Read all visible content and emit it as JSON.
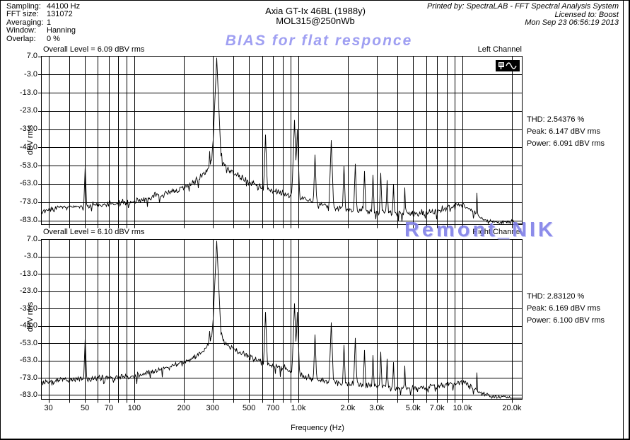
{
  "header": {
    "info": [
      {
        "label": "Sampling:",
        "value": "44100 Hz"
      },
      {
        "label": "FFT size:",
        "value": "131072"
      },
      {
        "label": "Averaging:",
        "value": "1"
      },
      {
        "label": "Window:",
        "value": "Hanning"
      },
      {
        "label": "Overlap:",
        "value": "0 %"
      }
    ],
    "title_line1": "Axia GT-Ix 46BL (1988y)",
    "title_line2": "MOL315@250nWb",
    "printed_by": "Printed by: SpectraLAB - FFT Spectral Analysis System",
    "licensed_to": "Licensed to: Boost",
    "timestamp": "Mon Sep 23 06:56:19 2013",
    "bias_note": "BIAS for flat responce"
  },
  "watermark": "Remont_NIK",
  "colors": {
    "note_blue": "#9f9ff2",
    "watermark_blue": "#7d7de8",
    "trace": "#000000",
    "grid": "#000000",
    "background": "#ffffff"
  },
  "axis": {
    "x_label": "Frequency (Hz)",
    "x_tick_labels": [
      "30",
      "50",
      "70",
      "100",
      "200",
      "300",
      "500",
      "700",
      "1.0k",
      "2.0k",
      "3.0k",
      "5.0k",
      "7.0k",
      "10.0k",
      "20.0k"
    ],
    "y_tick_labels": [
      "7.0",
      "-3.0",
      "-13.0",
      "-23.0",
      "-33.0",
      "-43.0",
      "-53.0",
      "-63.0",
      "-73.0",
      "-83.0"
    ]
  },
  "charts": [
    {
      "overall_level": "Overall Level = 6.09 dBV rms",
      "channel": "Left Channel",
      "ylabel": "dBV rms",
      "stats": [
        "THD: 2.54376 %",
        "Peak: 6.147 dBV rms",
        "Power: 6.091 dBV rms"
      ]
    },
    {
      "overall_level": "Overall Level = 6.10 dBV rms",
      "channel": "Right Channel",
      "ylabel": "dBV rms",
      "stats": [
        "THD: 2.83120 %",
        "Peak: 6.169 dBV rms",
        "Power: 6.100 dBV rms"
      ]
    }
  ],
  "chart_data": [
    {
      "type": "line",
      "channel": "Left Channel",
      "title": "Overall Level = 6.09 dBV rms",
      "xlabel": "Frequency (Hz)",
      "ylabel": "dBV rms",
      "xscale": "log",
      "xlim": [
        27,
        23000
      ],
      "ylim": [
        -86,
        7
      ],
      "grid": true,
      "x_ticks": [
        30,
        50,
        70,
        100,
        200,
        300,
        500,
        700,
        1000,
        2000,
        3000,
        5000,
        7000,
        10000,
        20000
      ],
      "y_ticks": [
        7,
        -3,
        -13,
        -23,
        -33,
        -43,
        -53,
        -63,
        -73,
        -83
      ],
      "stats": {
        "overall_level_dbv_rms": 6.09,
        "thd_percent": 2.54376,
        "peak_dbv_rms": 6.147,
        "power_dbv_rms": 6.091
      },
      "fundamental_hz": 315,
      "noise_floor_db": [
        [
          27,
          -78
        ],
        [
          35,
          -76
        ],
        [
          50,
          -75
        ],
        [
          70,
          -74
        ],
        [
          100,
          -73
        ],
        [
          130,
          -70
        ],
        [
          160,
          -68
        ],
        [
          200,
          -65
        ],
        [
          240,
          -61
        ],
        [
          270,
          -57
        ],
        [
          290,
          -52
        ],
        [
          305,
          -46
        ],
        [
          315,
          -41
        ],
        [
          328,
          -47
        ],
        [
          345,
          -52
        ],
        [
          380,
          -56
        ],
        [
          430,
          -59
        ],
        [
          500,
          -62
        ],
        [
          600,
          -65
        ],
        [
          700,
          -67
        ],
        [
          850,
          -69
        ],
        [
          1000,
          -71
        ],
        [
          1300,
          -74
        ],
        [
          1700,
          -76
        ],
        [
          2200,
          -77
        ],
        [
          3000,
          -78
        ],
        [
          4000,
          -79
        ],
        [
          5500,
          -79
        ],
        [
          7000,
          -78
        ],
        [
          8500,
          -75
        ],
        [
          10000,
          -74
        ],
        [
          11500,
          -78
        ],
        [
          13000,
          -82
        ],
        [
          15000,
          -84
        ],
        [
          18000,
          -84
        ],
        [
          20000,
          -84
        ],
        [
          23000,
          -86
        ]
      ],
      "peaks_db": [
        [
          50,
          -53
        ],
        [
          285,
          -45
        ],
        [
          297,
          -43
        ],
        [
          315,
          6.15
        ],
        [
          340,
          -46
        ],
        [
          630,
          -36
        ],
        [
          945,
          -28
        ],
        [
          985,
          -33
        ],
        [
          1260,
          -47
        ],
        [
          1575,
          -39
        ],
        [
          1890,
          -53
        ],
        [
          2205,
          -52
        ],
        [
          2520,
          -56
        ],
        [
          2835,
          -58
        ],
        [
          3150,
          -57
        ],
        [
          3465,
          -61
        ],
        [
          3780,
          -63
        ],
        [
          4410,
          -65
        ],
        [
          12200,
          -68
        ]
      ]
    },
    {
      "type": "line",
      "channel": "Right Channel",
      "title": "Overall Level = 6.10 dBV rms",
      "xlabel": "Frequency (Hz)",
      "ylabel": "dBV rms",
      "xscale": "log",
      "xlim": [
        27,
        23000
      ],
      "ylim": [
        -86,
        7
      ],
      "grid": true,
      "x_ticks": [
        30,
        50,
        70,
        100,
        200,
        300,
        500,
        700,
        1000,
        2000,
        3000,
        5000,
        7000,
        10000,
        20000
      ],
      "y_ticks": [
        7,
        -3,
        -13,
        -23,
        -33,
        -43,
        -53,
        -63,
        -73,
        -83
      ],
      "stats": {
        "overall_level_dbv_rms": 6.1,
        "thd_percent": 2.8312,
        "peak_dbv_rms": 6.169,
        "power_dbv_rms": 6.1
      },
      "fundamental_hz": 315,
      "noise_floor_db": [
        [
          27,
          -76
        ],
        [
          35,
          -74
        ],
        [
          50,
          -74
        ],
        [
          70,
          -73
        ],
        [
          100,
          -72
        ],
        [
          130,
          -69
        ],
        [
          160,
          -67
        ],
        [
          200,
          -64
        ],
        [
          240,
          -60
        ],
        [
          270,
          -56
        ],
        [
          290,
          -51
        ],
        [
          305,
          -45
        ],
        [
          315,
          -40
        ],
        [
          328,
          -46
        ],
        [
          345,
          -51
        ],
        [
          380,
          -55
        ],
        [
          430,
          -58
        ],
        [
          500,
          -61
        ],
        [
          600,
          -64
        ],
        [
          700,
          -66
        ],
        [
          850,
          -68
        ],
        [
          1000,
          -71
        ],
        [
          1300,
          -74
        ],
        [
          1700,
          -76
        ],
        [
          2200,
          -77
        ],
        [
          3000,
          -78
        ],
        [
          4000,
          -79
        ],
        [
          5500,
          -79
        ],
        [
          7000,
          -78
        ],
        [
          8500,
          -76
        ],
        [
          10000,
          -75
        ],
        [
          11500,
          -79
        ],
        [
          13000,
          -82
        ],
        [
          15000,
          -84
        ],
        [
          18000,
          -84
        ],
        [
          20000,
          -85
        ],
        [
          23000,
          -86
        ]
      ],
      "peaks_db": [
        [
          50,
          -50
        ],
        [
          285,
          -46
        ],
        [
          297,
          -44
        ],
        [
          315,
          6.17
        ],
        [
          340,
          -47
        ],
        [
          630,
          -35
        ],
        [
          945,
          -30
        ],
        [
          985,
          -35
        ],
        [
          1260,
          -48
        ],
        [
          1575,
          -41
        ],
        [
          1890,
          -54
        ],
        [
          2205,
          -50
        ],
        [
          2520,
          -57
        ],
        [
          2835,
          -60
        ],
        [
          3150,
          -58
        ],
        [
          3465,
          -62
        ],
        [
          3780,
          -64
        ],
        [
          4410,
          -66
        ],
        [
          12200,
          -70
        ]
      ]
    }
  ]
}
